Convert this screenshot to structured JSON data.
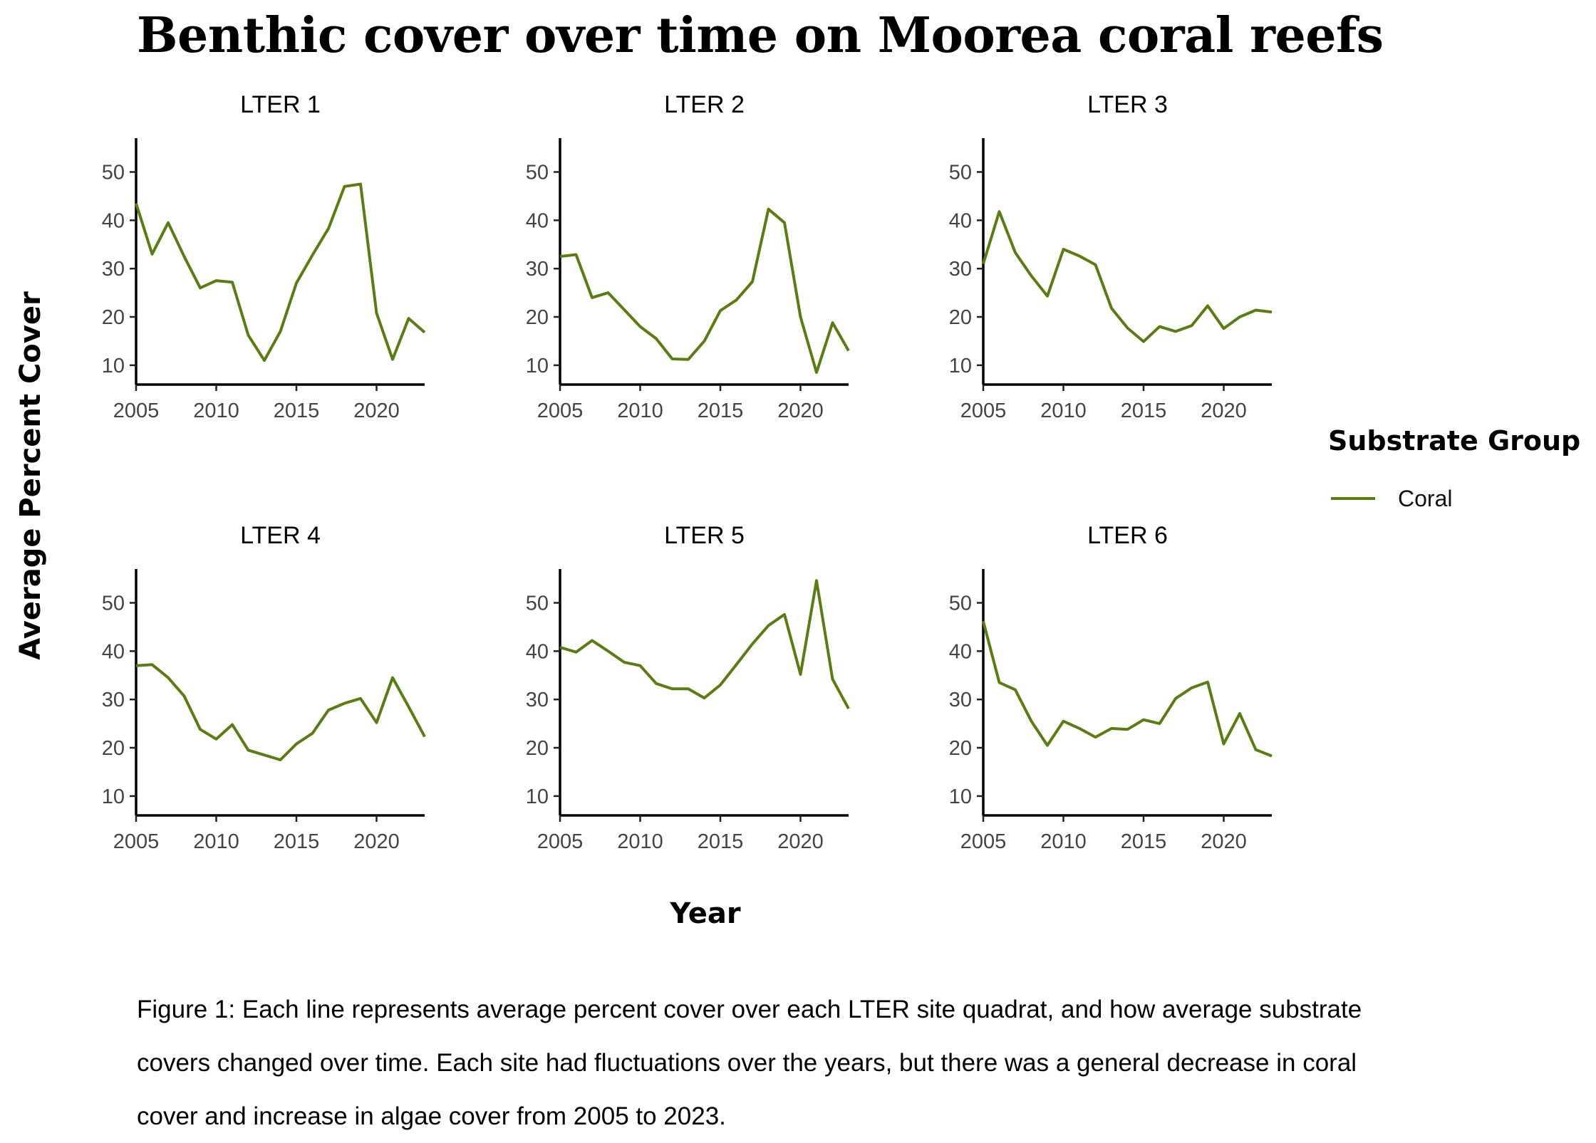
{
  "title": "Benthic cover over time on Moorea coral reefs",
  "caption": "Figure 1: Each line represents average percent cover over each LTER site quadrat, and how average substrate covers changed over time. Each site had fluctuations over the years, but there was a general decrease in coral cover and increase in algae cover from 2005 to 2023.",
  "colors": {
    "coral": "#5a7d12"
  },
  "chart_data": {
    "type": "line",
    "xlabel": "Year",
    "ylabel": "Average Percent Cover",
    "xlim": [
      2005,
      2023
    ],
    "ylim": [
      6,
      57
    ],
    "x_ticks": [
      2005,
      2010,
      2015,
      2020
    ],
    "y_ticks": [
      10,
      20,
      30,
      40,
      50
    ],
    "grid": false,
    "legend": {
      "title": "Substrate Group",
      "placement": "right",
      "entries": [
        "Coral"
      ]
    },
    "x": [
      2005,
      2006,
      2007,
      2008,
      2009,
      2010,
      2011,
      2012,
      2013,
      2014,
      2015,
      2016,
      2017,
      2018,
      2019,
      2020,
      2021,
      2022,
      2023
    ],
    "panels": [
      {
        "title": "LTER 1",
        "series": [
          {
            "name": "Coral",
            "values": [
              43.5,
              33.0,
              39.5,
              32.5,
              26.0,
              27.5,
              27.2,
              16.2,
              11.0,
              17.0,
              27.0,
              32.8,
              38.3,
              47.0,
              47.5,
              20.8,
              11.2,
              19.7,
              16.8
            ]
          }
        ]
      },
      {
        "title": "LTER 2",
        "series": [
          {
            "name": "Coral",
            "values": [
              32.5,
              32.9,
              24.0,
              25.0,
              21.5,
              18.0,
              15.5,
              11.3,
              11.2,
              15.0,
              21.3,
              23.5,
              27.3,
              42.3,
              39.5,
              20.0,
              8.5,
              18.8,
              13.0
            ]
          }
        ]
      },
      {
        "title": "LTER 3",
        "series": [
          {
            "name": "Coral",
            "values": [
              31.0,
              41.8,
              33.3,
              28.5,
              24.3,
              34.0,
              32.6,
              30.8,
              21.8,
              17.7,
              14.9,
              18.0,
              17.0,
              18.2,
              22.3,
              17.6,
              20.0,
              21.4,
              21.0
            ]
          }
        ]
      },
      {
        "title": "LTER 4",
        "series": [
          {
            "name": "Coral",
            "values": [
              37.0,
              37.2,
              34.5,
              30.7,
              23.8,
              21.8,
              24.8,
              19.5,
              18.5,
              17.5,
              20.8,
              23.0,
              27.8,
              29.2,
              30.2,
              25.2,
              34.5,
              28.5,
              22.3
            ]
          }
        ]
      },
      {
        "title": "LTER 5",
        "series": [
          {
            "name": "Coral",
            "values": [
              40.8,
              39.8,
              42.2,
              40.0,
              37.7,
              37.0,
              33.3,
              32.2,
              32.2,
              30.3,
              33.0,
              37.2,
              41.5,
              45.3,
              47.6,
              35.2,
              54.6,
              34.2,
              28.1
            ]
          }
        ]
      },
      {
        "title": "LTER 6",
        "series": [
          {
            "name": "Coral",
            "values": [
              46.2,
              33.5,
              32.0,
              25.5,
              20.5,
              25.5,
              24.0,
              22.2,
              24.0,
              23.8,
              25.8,
              25.0,
              30.2,
              32.4,
              33.6,
              20.8,
              27.1,
              19.6,
              18.3
            ]
          }
        ]
      }
    ]
  }
}
